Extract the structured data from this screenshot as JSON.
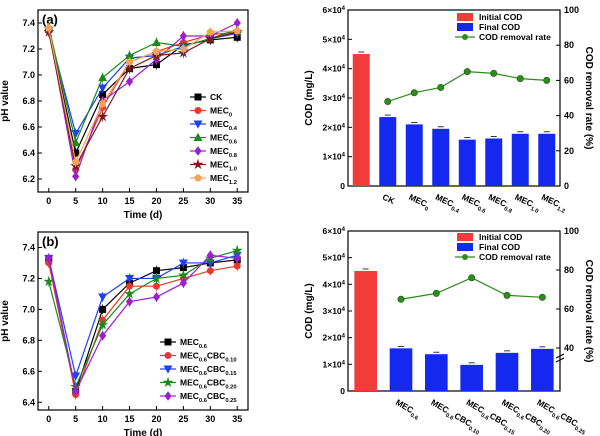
{
  "chart_data": [
    {
      "panel": "(a)",
      "type": "line",
      "xlabel": "Time (d)",
      "ylabel": "pH value",
      "x": [
        0,
        5,
        10,
        15,
        20,
        25,
        30,
        35
      ],
      "xticks": [
        "0",
        "5",
        "10",
        "15",
        "20",
        "25",
        "30",
        "35"
      ],
      "xlim": [
        -2,
        37
      ],
      "ylim": [
        6.1,
        7.5
      ],
      "yticks": [
        "6.2",
        "6.4",
        "6.6",
        "6.8",
        "7.0",
        "7.2",
        "7.4"
      ],
      "legend_position": "right",
      "series": [
        {
          "name": "CK",
          "sub": "",
          "color": "#000000",
          "marker": "square",
          "values": [
            7.35,
            6.4,
            6.85,
            7.05,
            7.08,
            7.23,
            7.27,
            7.29
          ]
        },
        {
          "name": "MEC",
          "sub": "0",
          "color": "#e8392b",
          "marker": "circle",
          "values": [
            7.34,
            6.27,
            6.75,
            7.1,
            7.18,
            7.25,
            7.31,
            7.33
          ]
        },
        {
          "name": "MEC",
          "sub": "0.4",
          "color": "#1f3ff0",
          "marker": "triangle-down",
          "values": [
            7.34,
            6.55,
            6.9,
            7.13,
            7.15,
            7.22,
            7.28,
            7.32
          ]
        },
        {
          "name": "MEC",
          "sub": "0.6",
          "color": "#1a8a1a",
          "marker": "triangle-up",
          "values": [
            7.37,
            6.48,
            6.98,
            7.15,
            7.25,
            7.22,
            7.28,
            7.35
          ]
        },
        {
          "name": "MEC",
          "sub": "0.8",
          "color": "#9b1fd0",
          "marker": "diamond",
          "values": [
            7.35,
            6.22,
            6.8,
            6.95,
            7.12,
            7.3,
            7.3,
            7.4
          ]
        },
        {
          "name": "MEC",
          "sub": "1.0",
          "color": "#7a1a1a",
          "marker": "star",
          "values": [
            7.33,
            6.3,
            6.68,
            7.05,
            7.15,
            7.17,
            7.28,
            7.33
          ]
        },
        {
          "name": "MEC",
          "sub": "1.2",
          "color": "#f3a35a",
          "marker": "pentagon",
          "values": [
            7.36,
            6.33,
            6.78,
            7.1,
            7.18,
            7.2,
            7.33,
            7.34
          ]
        }
      ]
    },
    {
      "panel": "",
      "type": "bar",
      "ylabel": "COD (mg/L)",
      "y2label": "COD removal rate (%)",
      "ylim": [
        0,
        60000
      ],
      "yticks": [
        "0",
        "1×10",
        "2×10",
        "3×10",
        "4×10",
        "5×10",
        "6×10"
      ],
      "ytick_exp": "4",
      "y2lim": [
        0,
        100
      ],
      "y2ticks": [
        "0",
        "20",
        "40",
        "60",
        "80",
        "100"
      ],
      "categories": [
        "",
        "CK",
        "MEC",
        "MEC",
        "MEC",
        "MEC",
        "MEC",
        "MEC"
      ],
      "category_subs": [
        "",
        "",
        "0",
        "0.4",
        "0.6",
        "0.8",
        "1.0",
        "1.2"
      ],
      "legend_position": "top-right",
      "series": [
        {
          "name": "Initial COD",
          "color": "#f23c3c",
          "values": [
            45000,
            null,
            null,
            null,
            null,
            null,
            null,
            null
          ]
        },
        {
          "name": "Final COD",
          "color": "#1428f0",
          "values": [
            null,
            23500,
            21000,
            19500,
            15800,
            16200,
            17800,
            17800
          ]
        },
        {
          "name": "COD removal rate",
          "color": "#2e8b1e",
          "kind": "line",
          "axis": "right",
          "values": [
            null,
            48,
            53,
            56,
            65,
            64,
            61,
            60
          ]
        }
      ]
    },
    {
      "panel": "(b)",
      "type": "line",
      "xlabel": "Time (d)",
      "ylabel": "pH value",
      "x": [
        0,
        5,
        10,
        15,
        20,
        25,
        30,
        35
      ],
      "xticks": [
        "0",
        "5",
        "10",
        "15",
        "20",
        "25",
        "30",
        "35"
      ],
      "xlim": [
        -2,
        37
      ],
      "ylim": [
        6.35,
        7.5
      ],
      "yticks": [
        "6.4",
        "6.6",
        "6.8",
        "7.0",
        "7.2",
        "7.4"
      ],
      "legend_position": "bottom-right",
      "series": [
        {
          "name": "MEC",
          "sub": "0.6",
          "name2": "",
          "sub2": "",
          "color": "#000000",
          "marker": "square",
          "values": [
            7.32,
            6.47,
            7.0,
            7.17,
            7.25,
            7.27,
            7.3,
            7.32
          ]
        },
        {
          "name": "MEC",
          "sub": "0.6",
          "name2": "CBC",
          "sub2": "0.10",
          "color": "#e8392b",
          "marker": "circle",
          "values": [
            7.3,
            6.45,
            6.93,
            7.15,
            7.15,
            7.2,
            7.25,
            7.28
          ]
        },
        {
          "name": "MEC",
          "sub": "0.6",
          "name2": "CBC",
          "sub2": "0.15",
          "color": "#1f3ff0",
          "marker": "triangle-down",
          "values": [
            7.33,
            6.57,
            7.08,
            7.2,
            7.2,
            7.3,
            7.3,
            7.35
          ]
        },
        {
          "name": "MEC",
          "sub": "0.6",
          "name2": "CBC",
          "sub2": "0.20",
          "color": "#1a8a1a",
          "marker": "star",
          "values": [
            7.18,
            6.5,
            6.9,
            7.1,
            7.2,
            7.22,
            7.33,
            7.38
          ]
        },
        {
          "name": "MEC",
          "sub": "0.6",
          "name2": "CBC",
          "sub2": "0.25",
          "color": "#9b1fd0",
          "marker": "diamond",
          "values": [
            7.33,
            6.47,
            6.83,
            7.05,
            7.08,
            7.17,
            7.35,
            7.33
          ]
        }
      ]
    },
    {
      "panel": "",
      "type": "bar",
      "ylabel": "COD (mg/L)",
      "y2label": "COD removal rate (%)",
      "ylim": [
        0,
        60000
      ],
      "yticks": [
        "0",
        "1×10",
        "2×10",
        "3×10",
        "4×10",
        "5×10",
        "6×10"
      ],
      "ytick_exp": "4",
      "y2lim": [
        0,
        100
      ],
      "y2ticks": [
        "40",
        "60",
        "80",
        "100"
      ],
      "y2break": true,
      "categories": [
        "",
        "MEC",
        "MEC",
        "MEC",
        "MEC",
        "MEC"
      ],
      "category_subs": [
        "",
        "0.6",
        "0.6",
        "0.6",
        "0.6",
        "0.6"
      ],
      "category_names2": [
        "",
        "",
        "CBC",
        "CBC",
        "CBC",
        "CBC"
      ],
      "category_subs2": [
        "",
        "",
        "0.10",
        "0.15",
        "0.20",
        "0.25"
      ],
      "legend_position": "top-right",
      "series": [
        {
          "name": "Initial COD",
          "color": "#f23c3c",
          "values": [
            45000,
            null,
            null,
            null,
            null,
            null
          ]
        },
        {
          "name": "Final COD",
          "color": "#1428f0",
          "values": [
            null,
            16000,
            13800,
            9800,
            14300,
            15800
          ]
        },
        {
          "name": "COD removal rate",
          "color": "#2e8b1e",
          "kind": "line",
          "axis": "right",
          "values": [
            null,
            65,
            68,
            76,
            67,
            66
          ]
        }
      ]
    }
  ]
}
